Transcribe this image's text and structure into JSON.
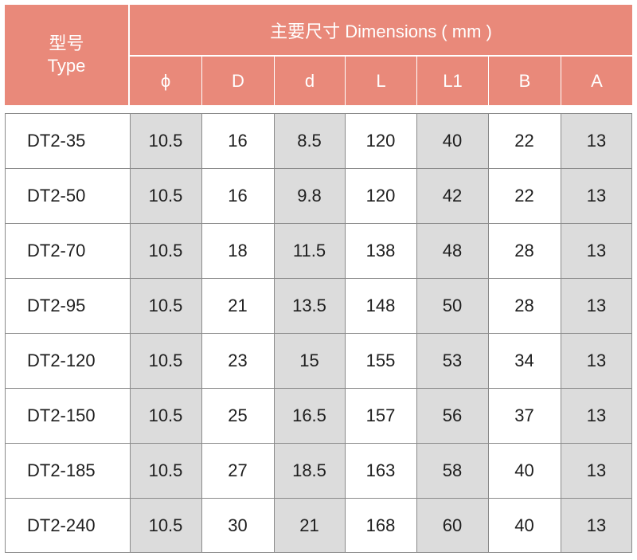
{
  "header": {
    "type_cn": "型号",
    "type_en": "Type",
    "dimensions": "主要尺寸 Dimensions ( mm )",
    "columns": [
      "ϕ",
      "D",
      "d",
      "L",
      "L1",
      "B",
      "A"
    ]
  },
  "rows": [
    {
      "type": "DT2-35",
      "values": [
        "10.5",
        "16",
        "8.5",
        "120",
        "40",
        "22",
        "13"
      ]
    },
    {
      "type": "DT2-50",
      "values": [
        "10.5",
        "16",
        "9.8",
        "120",
        "42",
        "22",
        "13"
      ]
    },
    {
      "type": "DT2-70",
      "values": [
        "10.5",
        "18",
        "11.5",
        "138",
        "48",
        "28",
        "13"
      ]
    },
    {
      "type": "DT2-95",
      "values": [
        "10.5",
        "21",
        "13.5",
        "148",
        "50",
        "28",
        "13"
      ]
    },
    {
      "type": "DT2-120",
      "values": [
        "10.5",
        "23",
        "15",
        "155",
        "53",
        "34",
        "13"
      ]
    },
    {
      "type": "DT2-150",
      "values": [
        "10.5",
        "25",
        "16.5",
        "157",
        "56",
        "37",
        "13"
      ]
    },
    {
      "type": "DT2-185",
      "values": [
        "10.5",
        "27",
        "18.5",
        "163",
        "58",
        "40",
        "13"
      ]
    },
    {
      "type": "DT2-240",
      "values": [
        "10.5",
        "30",
        "21",
        "168",
        "60",
        "40",
        "13"
      ]
    }
  ],
  "colors": {
    "header_bg": "#e9897a",
    "header_text": "#ffffff",
    "shaded_cell": "#dcdcdc",
    "white_cell": "#ffffff"
  }
}
